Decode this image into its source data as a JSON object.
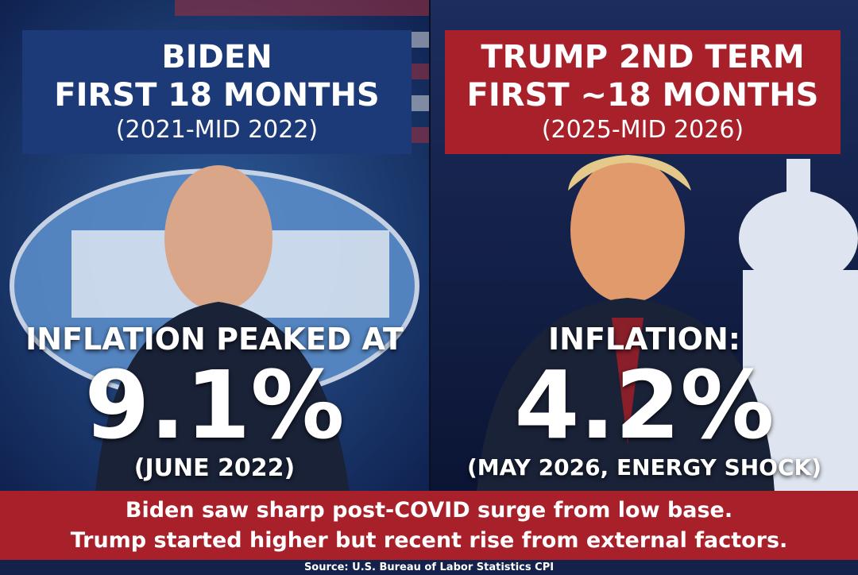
{
  "left": {
    "header": [
      "BIDEN",
      "FIRST 18 MONTHS",
      "(2021-MID 2022)"
    ],
    "label": "INFLATION PEAKED AT",
    "figure": "9.1%",
    "note": "(JUNE 2022)"
  },
  "right": {
    "header": [
      "TRUMP 2ND TERM",
      "FIRST ~18 MONTHS",
      "(2025-MID 2026)"
    ],
    "label": "INFLATION:",
    "figure": "4.2%",
    "note": "(MAY 2026, ENERGY SHOCK)"
  },
  "footer": {
    "lines": [
      "Biden saw sharp post-COVID surge from low base.",
      "Trump started higher but recent rise from external factors."
    ],
    "source": "Source: U.S. Bureau of Labor Statistics CPI"
  }
}
